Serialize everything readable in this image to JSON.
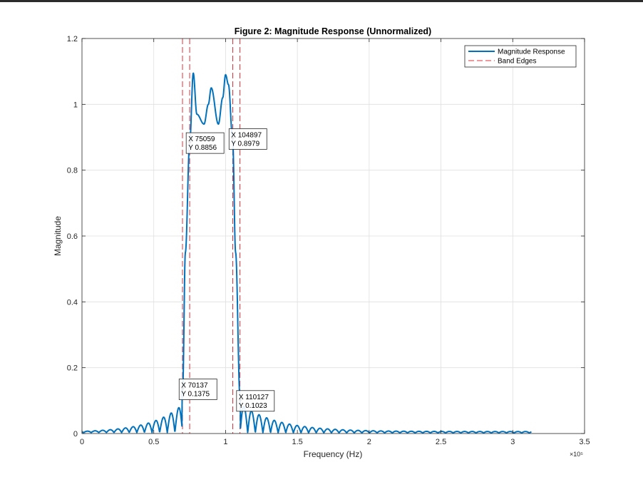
{
  "chart_data": {
    "type": "line",
    "title": "Figure 2: Magnitude Response (Unnormalized)",
    "xlabel": "Frequency (Hz)",
    "ylabel": "Magnitude",
    "x_exponent_label": "×10⁵",
    "xlim": [
      0,
      350000
    ],
    "ylim": [
      0,
      1.2
    ],
    "x_ticks": [
      0,
      50000,
      100000,
      150000,
      200000,
      250000,
      300000,
      350000
    ],
    "x_tick_labels": [
      "0",
      "0.5",
      "1",
      "1.5",
      "2",
      "2.5",
      "3",
      "3.5"
    ],
    "y_ticks": [
      0,
      0.2,
      0.4,
      0.6,
      0.8,
      1.0,
      1.2
    ],
    "y_tick_labels": [
      "0",
      "0.2",
      "0.4",
      "0.6",
      "0.8",
      "1",
      "1.2"
    ],
    "grid": true,
    "legend_position": "top-right",
    "series": [
      {
        "name": "Magnitude Response",
        "color": "#0072BD",
        "style": "solid",
        "x": [
          0,
          60000,
          65000,
          68500,
          70137,
          72000,
          75059,
          77500,
          80000,
          85000,
          88000,
          90000,
          95000,
          98000,
          100000,
          102000,
          104897,
          107000,
          110127,
          113000,
          313000
        ],
        "y": [
          0,
          0.04,
          0.06,
          0.08,
          0.1375,
          0.55,
          0.8856,
          1.095,
          0.97,
          0.94,
          1.0,
          1.05,
          0.94,
          1.02,
          1.09,
          1.06,
          0.8979,
          0.55,
          0.1023,
          0.09,
          0.005
        ]
      },
      {
        "name": "Band Edges",
        "color": "#E0303A",
        "style": "dashed",
        "x_lines": [
          70000,
          75000,
          105000,
          110000
        ]
      }
    ],
    "datatips": [
      {
        "x": 70137,
        "y": 0.1375,
        "x_text": "X 70137",
        "y_text": "Y 0.1375",
        "anchor": "right"
      },
      {
        "x": 75059,
        "y": 0.8856,
        "x_text": "X 75059",
        "y_text": "Y 0.8856",
        "anchor": "right"
      },
      {
        "x": 104897,
        "y": 0.8979,
        "x_text": "X 104897",
        "y_text": "Y 0.8979",
        "anchor": "right"
      },
      {
        "x": 110127,
        "y": 0.1023,
        "x_text": "X 110127",
        "y_text": "Y 0.1023",
        "anchor": "right"
      }
    ]
  }
}
